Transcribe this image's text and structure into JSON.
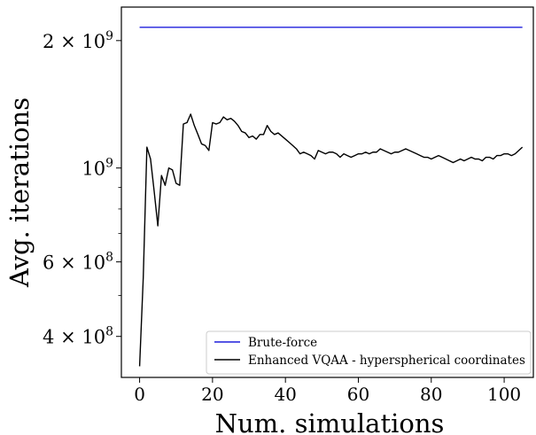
{
  "chart_data": {
    "type": "line",
    "xlabel": "Num. simulations",
    "ylabel": "Avg. iterations",
    "xlim": [
      -5,
      108
    ],
    "ylim": [
      320000000,
      2400000000
    ],
    "yscale": "log",
    "grid": false,
    "legend_position": "lower-right",
    "x_ticks": [
      {
        "value": 0,
        "label": "0"
      },
      {
        "value": 20,
        "label": "20"
      },
      {
        "value": 40,
        "label": "40"
      },
      {
        "value": 60,
        "label": "60"
      },
      {
        "value": 80,
        "label": "80"
      },
      {
        "value": 100,
        "label": "100"
      }
    ],
    "y_ticks": [
      {
        "value": 400000000,
        "base": "4 × 10",
        "exp": "8"
      },
      {
        "value": 600000000,
        "base": "6 × 10",
        "exp": "8"
      },
      {
        "value": 1000000000,
        "base": "10",
        "exp": "9"
      },
      {
        "value": 2000000000,
        "base": "2 × 10",
        "exp": "9"
      }
    ],
    "y_minor_ticks": [
      500000000,
      700000000,
      800000000,
      900000000
    ],
    "series": [
      {
        "name": "Brute-force",
        "color": "#1f1fdc",
        "x": [
          0,
          105
        ],
        "y": [
          2150000000,
          2150000000
        ]
      },
      {
        "name": "Enhanced VQAA - hyperspherical coordinates",
        "color": "#000000",
        "x": [
          0,
          1,
          2,
          3,
          4,
          5,
          6,
          7,
          8,
          9,
          10,
          11,
          12,
          13,
          14,
          15,
          16,
          17,
          18,
          19,
          20,
          21,
          22,
          23,
          24,
          25,
          26,
          27,
          28,
          29,
          30,
          31,
          32,
          33,
          34,
          35,
          36,
          37,
          38,
          39,
          40,
          41,
          42,
          43,
          44,
          45,
          46,
          47,
          48,
          49,
          50,
          51,
          52,
          53,
          54,
          55,
          56,
          57,
          58,
          59,
          60,
          61,
          62,
          63,
          64,
          65,
          66,
          67,
          68,
          69,
          70,
          71,
          72,
          73,
          74,
          75,
          76,
          77,
          78,
          79,
          80,
          81,
          82,
          83,
          84,
          85,
          86,
          87,
          88,
          89,
          90,
          91,
          92,
          93,
          94,
          95,
          96,
          97,
          98,
          99,
          100,
          101,
          102,
          103,
          104,
          105
        ],
        "y": [
          340000000,
          550000000,
          1120000000,
          1050000000,
          880000000,
          730000000,
          960000000,
          910000000,
          1000000000,
          990000000,
          920000000,
          910000000,
          1270000000,
          1280000000,
          1340000000,
          1260000000,
          1200000000,
          1140000000,
          1130000000,
          1100000000,
          1280000000,
          1270000000,
          1280000000,
          1320000000,
          1300000000,
          1310000000,
          1290000000,
          1260000000,
          1220000000,
          1210000000,
          1180000000,
          1190000000,
          1170000000,
          1200000000,
          1200000000,
          1260000000,
          1220000000,
          1200000000,
          1210000000,
          1190000000,
          1170000000,
          1150000000,
          1130000000,
          1110000000,
          1080000000,
          1090000000,
          1080000000,
          1070000000,
          1050000000,
          1100000000,
          1090000000,
          1080000000,
          1090000000,
          1090000000,
          1080000000,
          1060000000,
          1080000000,
          1070000000,
          1060000000,
          1070000000,
          1080000000,
          1080000000,
          1090000000,
          1080000000,
          1090000000,
          1090000000,
          1110000000,
          1100000000,
          1090000000,
          1080000000,
          1090000000,
          1090000000,
          1100000000,
          1110000000,
          1100000000,
          1090000000,
          1080000000,
          1070000000,
          1060000000,
          1060000000,
          1050000000,
          1060000000,
          1070000000,
          1060000000,
          1050000000,
          1040000000,
          1030000000,
          1040000000,
          1050000000,
          1040000000,
          1050000000,
          1060000000,
          1050000000,
          1050000000,
          1040000000,
          1060000000,
          1060000000,
          1050000000,
          1070000000,
          1070000000,
          1080000000,
          1080000000,
          1070000000,
          1080000000,
          1100000000,
          1120000000
        ]
      }
    ]
  }
}
